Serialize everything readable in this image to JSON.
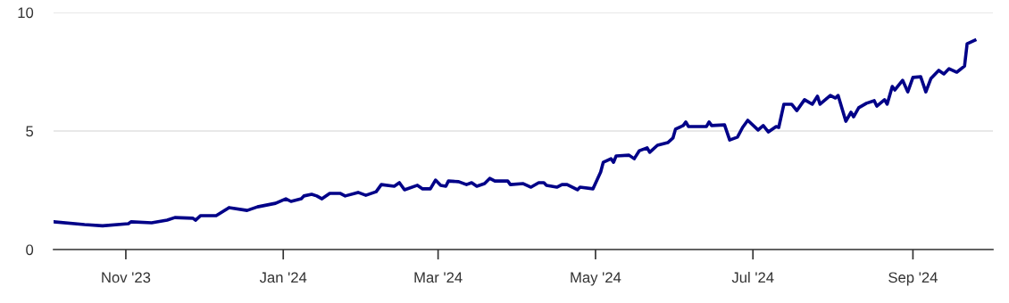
{
  "chart_data": {
    "type": "line",
    "x": [
      "2023-10-04",
      "2023-10-16",
      "2023-10-23",
      "2023-11-02",
      "2023-11-03",
      "2023-11-11",
      "2023-11-17",
      "2023-11-20",
      "2023-11-27",
      "2023-11-28",
      "2023-11-30",
      "2023-12-06",
      "2023-12-11",
      "2023-12-18",
      "2023-12-22",
      "2023-12-29",
      "2024-01-02",
      "2024-01-04",
      "2024-01-08",
      "2024-01-09",
      "2024-01-12",
      "2024-01-14",
      "2024-01-16",
      "2024-01-19",
      "2024-01-23",
      "2024-01-25",
      "2024-01-30",
      "2024-02-02",
      "2024-02-06",
      "2024-02-08",
      "2024-02-13",
      "2024-02-15",
      "2024-02-17",
      "2024-02-22",
      "2024-02-24",
      "2024-02-27",
      "2024-02-29",
      "2024-03-02",
      "2024-03-04",
      "2024-03-05",
      "2024-03-09",
      "2024-03-12",
      "2024-03-14",
      "2024-03-16",
      "2024-03-19",
      "2024-03-21",
      "2024-03-23",
      "2024-03-28",
      "2024-03-29",
      "2024-04-03",
      "2024-04-06",
      "2024-04-09",
      "2024-04-11",
      "2024-04-12",
      "2024-04-16",
      "2024-04-18",
      "2024-04-20",
      "2024-04-24",
      "2024-04-25",
      "2024-04-30",
      "2024-05-03",
      "2024-05-04",
      "2024-05-07",
      "2024-05-08",
      "2024-05-09",
      "2024-05-14",
      "2024-05-16",
      "2024-05-18",
      "2024-05-21",
      "2024-05-22",
      "2024-05-25",
      "2024-05-29",
      "2024-05-31",
      "2024-06-01",
      "2024-06-04",
      "2024-06-05",
      "2024-06-06",
      "2024-06-13",
      "2024-06-14",
      "2024-06-15",
      "2024-06-20",
      "2024-06-22",
      "2024-06-25",
      "2024-06-27",
      "2024-06-29",
      "2024-07-03",
      "2024-07-05",
      "2024-07-07",
      "2024-07-10",
      "2024-07-11",
      "2024-07-13",
      "2024-07-16",
      "2024-07-18",
      "2024-07-21",
      "2024-07-24",
      "2024-07-26",
      "2024-07-27",
      "2024-07-31",
      "2024-08-02",
      "2024-08-03",
      "2024-08-06",
      "2024-08-08",
      "2024-08-09",
      "2024-08-11",
      "2024-08-14",
      "2024-08-17",
      "2024-08-18",
      "2024-08-21",
      "2024-08-22",
      "2024-08-24",
      "2024-08-25",
      "2024-08-28",
      "2024-08-30",
      "2024-09-01",
      "2024-09-04",
      "2024-09-06",
      "2024-09-08",
      "2024-09-11",
      "2024-09-13",
      "2024-09-15",
      "2024-09-18",
      "2024-09-21",
      "2024-09-22",
      "2024-09-25"
    ],
    "series": [
      {
        "color": "#000088",
        "values": [
          1.17,
          1.05,
          1.0,
          1.09,
          1.17,
          1.13,
          1.24,
          1.35,
          1.32,
          1.24,
          1.43,
          1.43,
          1.77,
          1.65,
          1.8,
          1.95,
          2.14,
          2.03,
          2.14,
          2.26,
          2.33,
          2.26,
          2.14,
          2.37,
          2.37,
          2.26,
          2.41,
          2.29,
          2.44,
          2.74,
          2.67,
          2.82,
          2.52,
          2.71,
          2.56,
          2.56,
          2.93,
          2.71,
          2.67,
          2.89,
          2.86,
          2.74,
          2.82,
          2.67,
          2.78,
          3.0,
          2.89,
          2.89,
          2.74,
          2.78,
          2.63,
          2.82,
          2.82,
          2.71,
          2.63,
          2.74,
          2.74,
          2.52,
          2.63,
          2.56,
          3.27,
          3.68,
          3.83,
          3.68,
          3.95,
          3.98,
          3.83,
          4.17,
          4.29,
          4.1,
          4.4,
          4.51,
          4.7,
          5.08,
          5.23,
          5.38,
          5.19,
          5.19,
          5.38,
          5.23,
          5.26,
          4.62,
          4.74,
          5.15,
          5.45,
          5.04,
          5.23,
          4.96,
          5.19,
          5.15,
          6.13,
          6.13,
          5.86,
          6.32,
          6.13,
          6.47,
          6.13,
          6.5,
          6.39,
          6.5,
          5.41,
          5.79,
          5.6,
          5.98,
          6.17,
          6.28,
          6.05,
          6.32,
          6.13,
          6.88,
          6.73,
          7.14,
          6.65,
          7.26,
          7.29,
          6.65,
          7.22,
          7.56,
          7.41,
          7.63,
          7.48,
          7.74,
          8.68,
          8.83
        ]
      }
    ],
    "xlim": [
      "2023-10-04",
      "2024-10-02"
    ],
    "xticks": [
      {
        "value": "2023-11-01",
        "label": "Nov '23"
      },
      {
        "value": "2024-01-01",
        "label": "Jan '24"
      },
      {
        "value": "2024-03-01",
        "label": "Mar '24"
      },
      {
        "value": "2024-05-01",
        "label": "May '24"
      },
      {
        "value": "2024-07-01",
        "label": "Jul '24"
      },
      {
        "value": "2024-09-01",
        "label": "Sep '24"
      }
    ],
    "ylim": [
      0,
      10
    ],
    "yticks": [
      0,
      5,
      10
    ],
    "grid": "y",
    "marker": "none",
    "line_style": "solid"
  }
}
